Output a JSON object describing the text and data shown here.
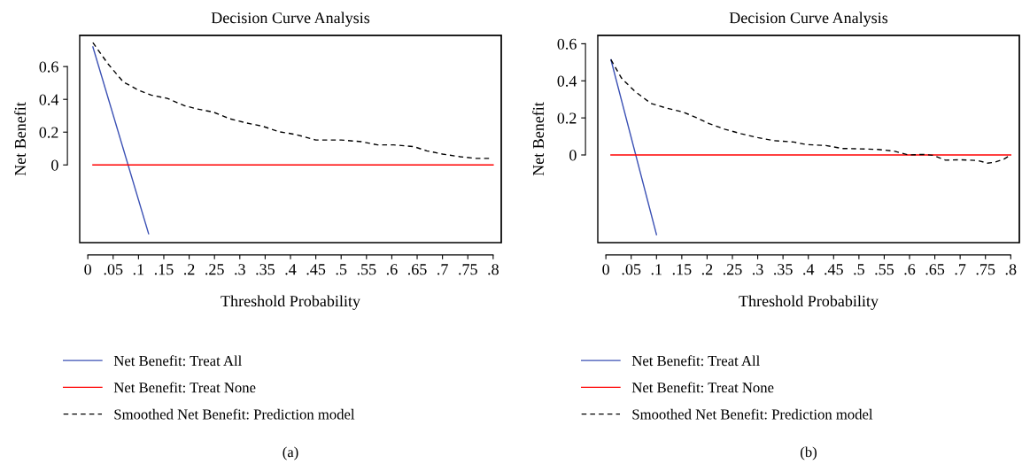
{
  "chart_data": [
    {
      "type": "line",
      "title": "Decision Curve Analysis",
      "xlabel": "Threshold Probability",
      "ylabel": "Net Benefit",
      "annotations": [
        "(a)"
      ],
      "xlim": [
        -0.016,
        0.816
      ],
      "ylim": [
        -0.474,
        0.79
      ],
      "xticks": [
        0,
        {
          "value": 0.05,
          "label": ".05"
        },
        {
          "value": 0.1,
          "label": ".1"
        },
        {
          "value": 0.15,
          "label": ".15"
        },
        {
          "value": 0.2,
          "label": ".2"
        },
        {
          "value": 0.25,
          "label": ".25"
        },
        {
          "value": 0.3,
          "label": ".3"
        },
        {
          "value": 0.35,
          "label": ".35"
        },
        {
          "value": 0.4,
          "label": ".4"
        },
        {
          "value": 0.45,
          "label": ".45"
        },
        {
          "value": 0.5,
          "label": ".5"
        },
        {
          "value": 0.55,
          "label": ".55"
        },
        {
          "value": 0.6,
          "label": ".6"
        },
        {
          "value": 0.65,
          "label": ".65"
        },
        {
          "value": 0.7,
          "label": ".7"
        },
        {
          "value": 0.75,
          "label": ".75"
        },
        {
          "value": 0.8,
          "label": ".8"
        }
      ],
      "yticks": [
        0,
        0.2,
        0.4,
        0.6
      ],
      "grid": false,
      "legend": "bottom",
      "series": [
        {
          "name": "Net Benefit: Treat All",
          "color": "#3a50b4",
          "line_style": "solid",
          "x": [
            0.01,
            0.12
          ],
          "values": [
            0.72,
            -0.42
          ]
        },
        {
          "name": "Net Benefit: Treat None",
          "color": "#ff0000",
          "line_style": "solid",
          "x": [
            0.01,
            0.8
          ],
          "values": [
            0,
            0
          ]
        },
        {
          "name": "Smoothed Net Benefit: Prediction model",
          "color": "#000000",
          "line_style": "dashed",
          "x": [
            0.01,
            0.04,
            0.07,
            0.1,
            0.125,
            0.157,
            0.19,
            0.215,
            0.248,
            0.28,
            0.313,
            0.345,
            0.378,
            0.41,
            0.45,
            0.5,
            0.54,
            0.572,
            0.604,
            0.643,
            0.669,
            0.7,
            0.735,
            0.765,
            0.795
          ],
          "values": [
            0.746,
            0.616,
            0.506,
            0.456,
            0.426,
            0.406,
            0.362,
            0.342,
            0.322,
            0.282,
            0.256,
            0.236,
            0.202,
            0.186,
            0.152,
            0.152,
            0.142,
            0.122,
            0.122,
            0.112,
            0.086,
            0.066,
            0.05,
            0.04,
            0.04
          ]
        }
      ]
    },
    {
      "type": "line",
      "title": "Decision Curve Analysis",
      "xlabel": "Threshold Probability",
      "ylabel": "Net Benefit",
      "annotations": [
        "(b)"
      ],
      "xlim": [
        -0.016,
        0.817
      ],
      "ylim": [
        -0.473,
        0.645
      ],
      "xticks": [
        0,
        {
          "value": 0.05,
          "label": ".05"
        },
        {
          "value": 0.1,
          "label": ".1"
        },
        {
          "value": 0.15,
          "label": ".15"
        },
        {
          "value": 0.2,
          "label": ".2"
        },
        {
          "value": 0.25,
          "label": ".25"
        },
        {
          "value": 0.3,
          "label": ".3"
        },
        {
          "value": 0.35,
          "label": ".35"
        },
        {
          "value": 0.4,
          "label": ".4"
        },
        {
          "value": 0.45,
          "label": ".45"
        },
        {
          "value": 0.5,
          "label": ".5"
        },
        {
          "value": 0.55,
          "label": ".55"
        },
        {
          "value": 0.6,
          "label": ".6"
        },
        {
          "value": 0.65,
          "label": ".65"
        },
        {
          "value": 0.7,
          "label": ".7"
        },
        {
          "value": 0.75,
          "label": ".75"
        },
        {
          "value": 0.8,
          "label": ".8"
        }
      ],
      "yticks": [
        0,
        0.2,
        0.4,
        0.6
      ],
      "grid": false,
      "legend": "bottom",
      "series": [
        {
          "name": "Net Benefit: Treat All",
          "color": "#3a50b4",
          "line_style": "solid",
          "x": [
            0.01,
            0.1
          ],
          "values": [
            0.514,
            -0.43
          ]
        },
        {
          "name": "Net Benefit: Treat None",
          "color": "#ff0000",
          "line_style": "solid",
          "x": [
            0.01,
            0.8
          ],
          "values": [
            0,
            0
          ]
        },
        {
          "name": "Smoothed Net Benefit: Prediction model",
          "color": "#000000",
          "line_style": "dashed",
          "x": [
            0.01,
            0.031,
            0.057,
            0.089,
            0.121,
            0.153,
            0.179,
            0.204,
            0.236,
            0.268,
            0.3,
            0.332,
            0.371,
            0.396,
            0.435,
            0.467,
            0.498,
            0.537,
            0.569,
            0.598,
            0.627,
            0.646,
            0.671,
            0.703,
            0.735,
            0.754,
            0.767,
            0.786,
            0.799
          ],
          "values": [
            0.514,
            0.414,
            0.344,
            0.278,
            0.252,
            0.231,
            0.201,
            0.169,
            0.138,
            0.114,
            0.094,
            0.077,
            0.07,
            0.056,
            0.051,
            0.035,
            0.033,
            0.03,
            0.021,
            0,
            0.003,
            -0.002,
            -0.028,
            -0.026,
            -0.03,
            -0.044,
            -0.04,
            -0.023,
            -0.002
          ]
        }
      ]
    }
  ]
}
